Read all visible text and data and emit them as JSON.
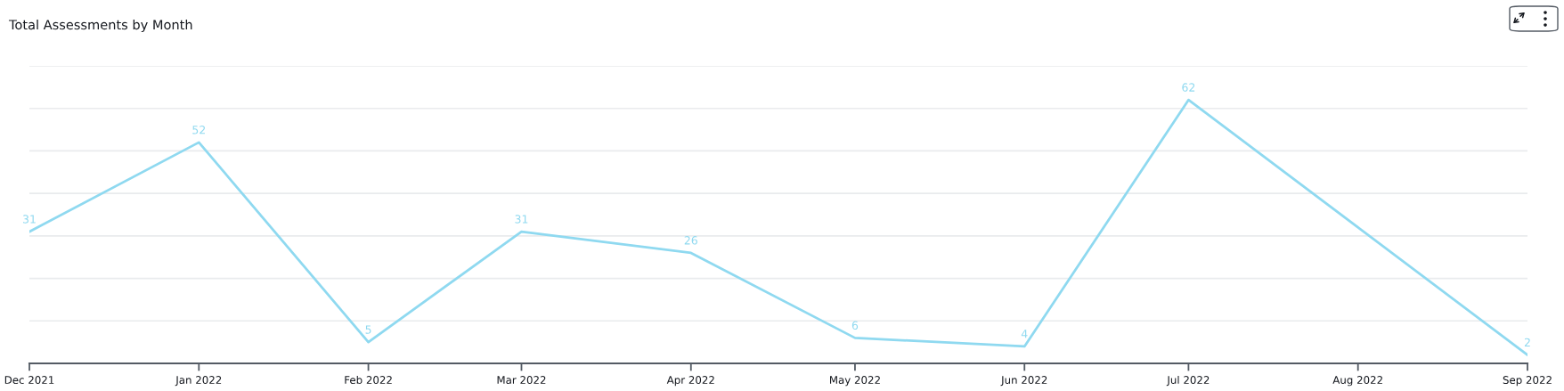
{
  "chart_data": {
    "type": "line",
    "title": "Total Assessments by Month",
    "x": [
      "2021-12",
      "2022-01",
      "2022-02",
      "2022-03",
      "2022-04",
      "2022-05",
      "2022-06",
      "2022-07",
      "2022-09"
    ],
    "series": [
      {
        "color": "#8fd9f0",
        "values": [
          31,
          52,
          5,
          31,
          26,
          6,
          4,
          62,
          2
        ]
      }
    ],
    "xlim": [
      "2021-12",
      "2022-09"
    ],
    "xticks": [
      {
        "value": "2021-12",
        "label": "Dec 2021"
      },
      {
        "value": "2022-01",
        "label": "Jan 2022"
      },
      {
        "value": "2022-02",
        "label": "Feb 2022"
      },
      {
        "value": "2022-03",
        "label": "Mar 2022"
      },
      {
        "value": "2022-04",
        "label": "Apr 2022"
      },
      {
        "value": "2022-05",
        "label": "May 2022"
      },
      {
        "value": "2022-06",
        "label": "Jun 2022"
      },
      {
        "value": "2022-07",
        "label": "Jul 2022"
      },
      {
        "value": "2022-08",
        "label": "Aug 2022"
      },
      {
        "value": "2022-09",
        "label": "Sep 2022"
      }
    ],
    "ylim": [
      0,
      70
    ],
    "yticks": [
      0,
      10,
      20,
      30,
      40,
      50,
      60,
      70
    ],
    "tick_labels": "x",
    "grid": "y",
    "marker": "none",
    "line_style": "solid",
    "data_labels": true
  }
}
